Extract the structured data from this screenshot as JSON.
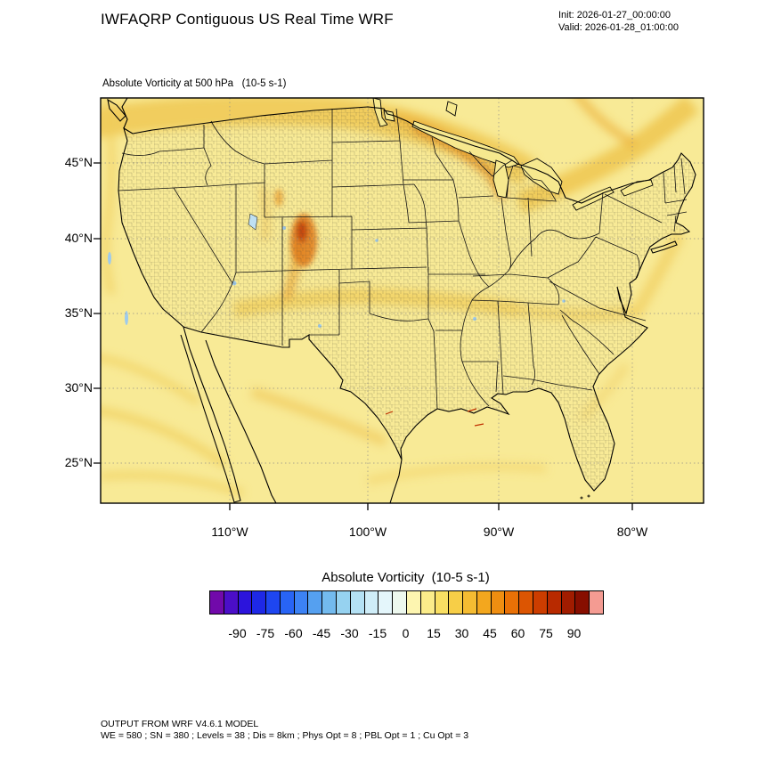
{
  "header": {
    "title": "IWFAQRP Contiguous US Real Time WRF",
    "init_line": "Init: 2026-01-27_00:00:00",
    "valid_line": "Valid: 2026-01-28_01:00:00"
  },
  "map": {
    "subtitle": "Absolute Vorticity at 500 hPa   (10-5 s-1)",
    "lat_ticks": [
      "45°N",
      "40°N",
      "35°N",
      "30°N",
      "25°N"
    ],
    "lon_ticks": [
      "110°W",
      "100°W",
      "90°W",
      "80°W"
    ]
  },
  "colorbar": {
    "title": "Absolute Vorticity  (10-5 s-1)",
    "min": -105,
    "max": 105,
    "tick_values": [
      -90,
      -75,
      -60,
      -45,
      -30,
      -15,
      0,
      15,
      30,
      45,
      60,
      75,
      90
    ],
    "tick_labels": [
      "-90",
      "-75",
      "-60",
      "-45",
      "-30",
      "-15",
      "0",
      "15",
      "30",
      "45",
      "60",
      "75",
      "90"
    ],
    "colors": [
      "#7109AA",
      "#4B0EC8",
      "#2C14DC",
      "#1E28E6",
      "#1E46F0",
      "#2864F5",
      "#3C82F5",
      "#55A0F0",
      "#73BAEE",
      "#96D2F0",
      "#B4E1F4",
      "#CFEDF8",
      "#E4F6FB",
      "#EDF8EE",
      "#FDF5B0",
      "#FBEC8A",
      "#F9DF63",
      "#F7CE47",
      "#F5BC32",
      "#F3A71E",
      "#EF8E11",
      "#E97106",
      "#DC5502",
      "#CC3D00",
      "#B82A00",
      "#A11C00",
      "#870E00",
      "#F49B92"
    ]
  },
  "footer": {
    "line1": "OUTPUT FROM WRF V4.6.1 MODEL",
    "line2": "WE = 580 ; SN = 380 ; Levels = 38 ; Dis = 8km ; Phys Opt = 8 ; PBL Opt = 1 ; Cu Opt = 3"
  },
  "chart_data": {
    "type": "heatmap",
    "title": "Absolute Vorticity at 500 hPa (10-5 s-1)",
    "variable": "Absolute Vorticity",
    "level_hPa": 500,
    "units": "10-5 s-1",
    "region": "Contiguous US (WRF CONUS domain, Lambert conformal projection)",
    "model": "WRF V4.6.1",
    "init_time": "2026-01-27_00:00:00",
    "valid_time": "2026-01-28_01:00:00",
    "x_ticks": [
      "110°W",
      "100°W",
      "90°W",
      "80°W"
    ],
    "y_ticks": [
      "45°N",
      "40°N",
      "35°N",
      "30°N",
      "25°N"
    ],
    "colorbar_range": [
      -105,
      105
    ],
    "colorbar_ticks": [
      -90,
      -75,
      -60,
      -45,
      -30,
      -15,
      0,
      15,
      30,
      45,
      60,
      75,
      90
    ],
    "grid_info": {
      "WE": 580,
      "SN": 380,
      "Levels": 38,
      "Dis": "8km",
      "Phys_Opt": 8,
      "PBL_Opt": 1,
      "Cu_Opt": 3
    },
    "field_features": [
      {
        "area": "Colorado / southern Wyoming Rockies",
        "value_range": [
          30,
          75
        ],
        "note": "strongest positive vorticity maximum (orange-red core)"
      },
      {
        "area": "Montana through Minnesota / western Great Lakes",
        "value_range": [
          15,
          45
        ],
        "note": "broad curved gold-orange band along northern trough"
      },
      {
        "area": "Northeast US / New England into Canada",
        "value_range": [
          15,
          35
        ],
        "note": "elongated gold band"
      },
      {
        "area": "Central plains Kansas-Missouri eastward",
        "value_range": [
          10,
          25
        ],
        "note": "weak gold band"
      },
      {
        "area": "Southwest Pacific ocean and Gulf of Mexico",
        "value_range": [
          5,
          20
        ],
        "note": "thin wavy gold streaks"
      },
      {
        "area": "Most of domain background",
        "value_range": [
          0,
          15
        ],
        "note": "pale yellow background values"
      },
      {
        "area": "Scattered small spots (Utah, plains, ocean)",
        "value_range": [
          -30,
          -5
        ],
        "note": "isolated light-blue negative vorticity specks"
      }
    ]
  }
}
